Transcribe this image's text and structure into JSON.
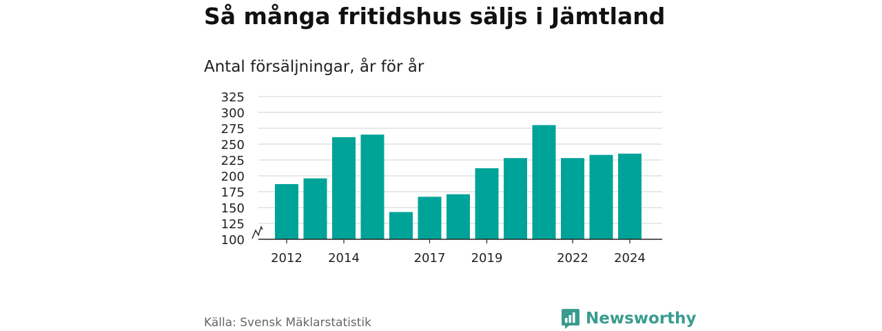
{
  "title": "Så många fritidshus säljs i Jämtland",
  "subtitle": "Antal försäljningar, år för år",
  "source": "Källa: Svensk Mäklarstatistik",
  "brand": "Newsworthy",
  "colors": {
    "bar": "#00a398",
    "brand": "#3a9b8f",
    "grid": "#d9d9d9",
    "axis": "#222222"
  },
  "chart_data": {
    "type": "bar",
    "categories": [
      "2012",
      "2013",
      "2014",
      "2015",
      "2016",
      "2017",
      "2018",
      "2019",
      "2020",
      "2021",
      "2022",
      "2023",
      "2024"
    ],
    "values": [
      187,
      196,
      261,
      265,
      143,
      167,
      171,
      212,
      228,
      280,
      228,
      233,
      235
    ],
    "title": "Så många fritidshus säljs i Jämtland",
    "subtitle": "Antal försäljningar, år för år",
    "ylim": [
      100,
      325
    ],
    "yticks": [
      "100",
      "125",
      "150",
      "175",
      "200",
      "225",
      "250",
      "275",
      "300",
      "325"
    ],
    "xtick_labels": [
      "2012",
      "2014",
      "2017",
      "2019",
      "2022",
      "2024"
    ],
    "axis_break": true,
    "grid": true
  }
}
